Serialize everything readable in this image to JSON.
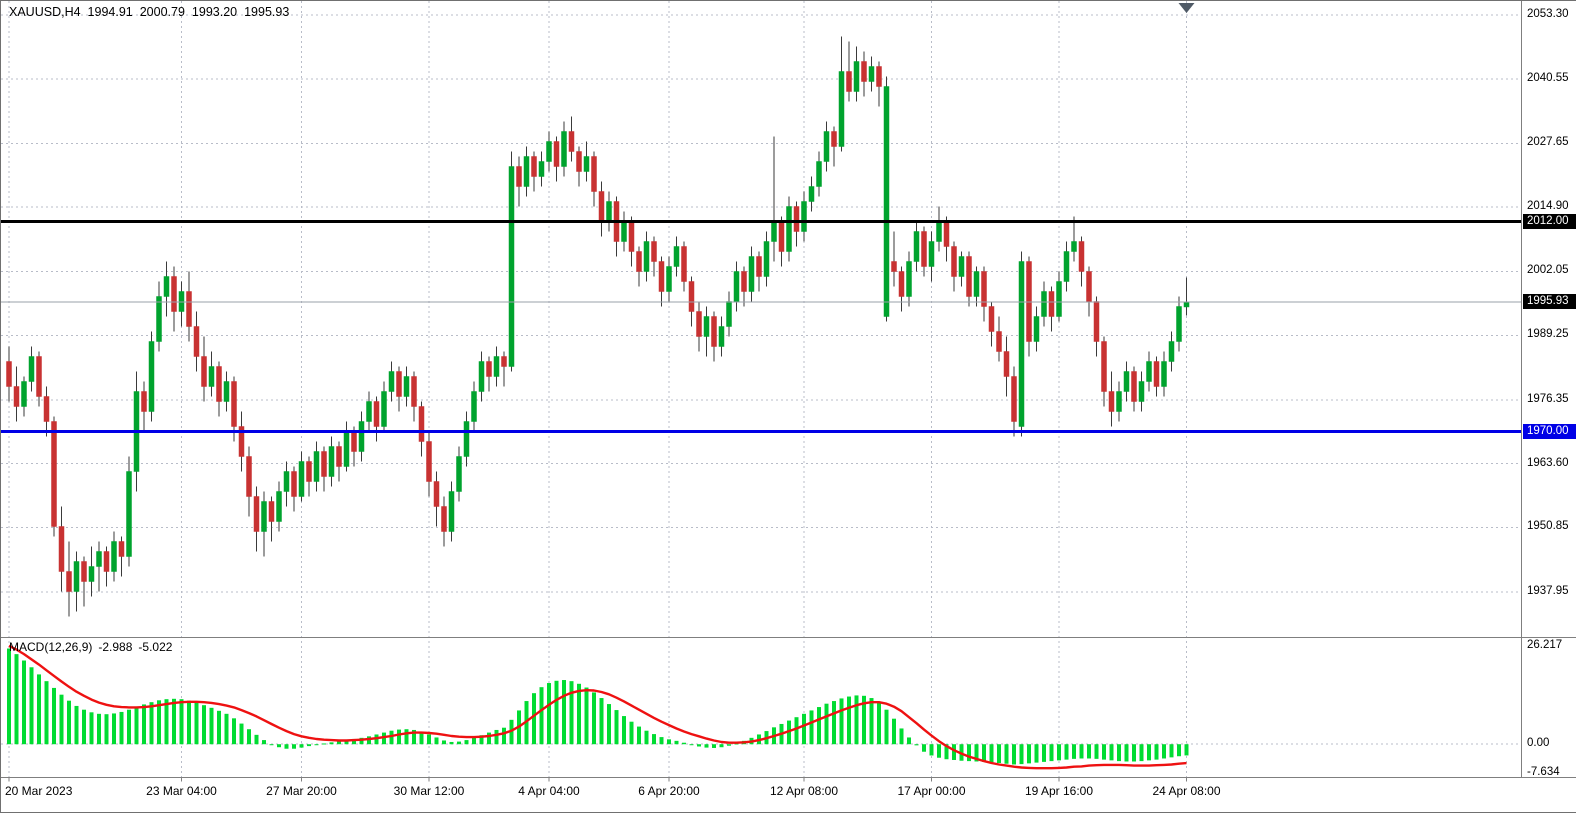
{
  "header": {
    "symbol_period": "XAUUSD,H4",
    "open": "1994.91",
    "high": "2000.79",
    "low": "1993.20",
    "close": "1995.93"
  },
  "macd_panel": {
    "label": "MACD(12,26,9)",
    "main_value": "-2.988",
    "signal_value": "-5.022"
  },
  "colors": {
    "background": "#ffffff",
    "candle_up": "#00A32E",
    "candle_down": "#C83232",
    "candle_wick": "#3a3a3a",
    "macd_histogram": "#00DC32",
    "macd_signal": "#EE1111",
    "grid": "#b8bcc8",
    "separator": "#7f7f7f",
    "bid_line": "#9aa0aa",
    "shift_marker": "#4f5a66",
    "axis_text": "#000000",
    "tag_text": "#ffffff"
  },
  "chart_data": {
    "type": "candlestick",
    "symbol": "XAUUSD",
    "timeframe": "H4",
    "title": "XAUUSD,H4 1994.91 2000.79 1993.20 1995.93",
    "ohlc_current": {
      "open": 1994.91,
      "high": 2000.79,
      "low": 1993.2,
      "close": 1995.93
    },
    "price_axis": {
      "max": 2054.9,
      "min": 1929.3,
      "labels": [
        "2053.30",
        "2040.55",
        "2027.65",
        "2014.90",
        "2002.05",
        "1989.25",
        "1976.35",
        "1963.60",
        "1950.85",
        "1937.95"
      ]
    },
    "time_axis": {
      "ticks": [
        {
          "text": "20 Mar 2023",
          "index": 0,
          "align": "left"
        },
        {
          "text": "23 Mar 04:00",
          "index": 23
        },
        {
          "text": "27 Mar 20:00",
          "index": 39
        },
        {
          "text": "30 Mar 12:00",
          "index": 56
        },
        {
          "text": "4 Apr 04:00",
          "index": 72
        },
        {
          "text": "6 Apr 20:00",
          "index": 88
        },
        {
          "text": "12 Apr 08:00",
          "index": 106
        },
        {
          "text": "17 Apr 00:00",
          "index": 123
        },
        {
          "text": "19 Apr 16:00",
          "index": 140
        },
        {
          "text": "24 Apr 08:00",
          "index": 157
        }
      ]
    },
    "levels": [
      {
        "value": 2012.0,
        "label": "2012.00",
        "color": "#000000"
      },
      {
        "value": 1970.0,
        "label": "1970.00",
        "color": "#0000E6"
      }
    ],
    "bid": {
      "value": 1995.93,
      "label": "1995.93",
      "bg": "#000000"
    },
    "candles": [
      [
        1984,
        1987,
        1976,
        1979
      ],
      [
        1979,
        1983,
        1972,
        1975
      ],
      [
        1975,
        1981,
        1973,
        1980
      ],
      [
        1980,
        1987,
        1978,
        1985
      ],
      [
        1985,
        1986,
        1975,
        1977
      ],
      [
        1977,
        1979,
        1969,
        1972
      ],
      [
        1972,
        1973,
        1949,
        1951
      ],
      [
        1951,
        1955,
        1938,
        1942
      ],
      [
        1942,
        1948,
        1933,
        1938
      ],
      [
        1938,
        1946,
        1934,
        1944
      ],
      [
        1944,
        1945,
        1935,
        1940
      ],
      [
        1940,
        1947,
        1937,
        1943
      ],
      [
        1943,
        1948,
        1938,
        1946
      ],
      [
        1946,
        1947,
        1939,
        1942
      ],
      [
        1942,
        1950,
        1940,
        1948
      ],
      [
        1948,
        1949,
        1941,
        1945
      ],
      [
        1945,
        1965,
        1943,
        1962
      ],
      [
        1962,
        1982,
        1958,
        1978
      ],
      [
        1978,
        1980,
        1970,
        1974
      ],
      [
        1974,
        1990,
        1972,
        1988
      ],
      [
        1988,
        2000,
        1986,
        1997
      ],
      [
        1997,
        2004,
        1993,
        2001
      ],
      [
        2001,
        2003,
        1990,
        1994
      ],
      [
        1994,
        2000,
        1991,
        1998
      ],
      [
        1998,
        2002,
        1988,
        1991
      ],
      [
        1991,
        1994,
        1982,
        1985
      ],
      [
        1985,
        1989,
        1976,
        1979
      ],
      [
        1979,
        1986,
        1977,
        1983
      ],
      [
        1983,
        1984,
        1973,
        1976
      ],
      [
        1976,
        1982,
        1974,
        1980
      ],
      [
        1980,
        1981,
        1968,
        1971
      ],
      [
        1971,
        1974,
        1962,
        1965
      ],
      [
        1965,
        1967,
        1953,
        1957
      ],
      [
        1957,
        1959,
        1946,
        1950
      ],
      [
        1950,
        1958,
        1945,
        1956
      ],
      [
        1956,
        1957,
        1948,
        1952
      ],
      [
        1952,
        1960,
        1950,
        1958
      ],
      [
        1958,
        1964,
        1955,
        1962
      ],
      [
        1962,
        1963,
        1954,
        1957
      ],
      [
        1957,
        1966,
        1956,
        1964
      ],
      [
        1964,
        1965,
        1957,
        1960
      ],
      [
        1960,
        1968,
        1958,
        1966
      ],
      [
        1966,
        1967,
        1958,
        1961
      ],
      [
        1961,
        1969,
        1959,
        1967
      ],
      [
        1967,
        1968,
        1960,
        1963
      ],
      [
        1963,
        1972,
        1962,
        1970
      ],
      [
        1970,
        1971,
        1963,
        1966
      ],
      [
        1966,
        1974,
        1964,
        1972
      ],
      [
        1972,
        1978,
        1970,
        1976
      ],
      [
        1976,
        1977,
        1968,
        1971
      ],
      [
        1971,
        1980,
        1970,
        1978
      ],
      [
        1978,
        1984,
        1976,
        1982
      ],
      [
        1982,
        1983,
        1974,
        1977
      ],
      [
        1977,
        1983,
        1975,
        1981
      ],
      [
        1981,
        1982,
        1972,
        1975
      ],
      [
        1975,
        1976,
        1965,
        1968
      ],
      [
        1968,
        1970,
        1957,
        1960
      ],
      [
        1960,
        1962,
        1951,
        1955
      ],
      [
        1955,
        1957,
        1947,
        1950
      ],
      [
        1950,
        1960,
        1948,
        1958
      ],
      [
        1958,
        1967,
        1956,
        1965
      ],
      [
        1965,
        1974,
        1963,
        1972
      ],
      [
        1972,
        1980,
        1970,
        1978
      ],
      [
        1978,
        1986,
        1976,
        1984
      ],
      [
        1984,
        1985,
        1978,
        1981
      ],
      [
        1981,
        1987,
        1979,
        1985
      ],
      [
        1985,
        1986,
        1979,
        1983
      ],
      [
        1983,
        2026,
        1982,
        2023
      ],
      [
        2023,
        2025,
        2015,
        2019
      ],
      [
        2019,
        2027,
        2017,
        2025
      ],
      [
        2025,
        2026,
        2018,
        2021
      ],
      [
        2021,
        2026,
        2019,
        2024
      ],
      [
        2024,
        2030,
        2022,
        2028
      ],
      [
        2028,
        2029,
        2020,
        2023
      ],
      [
        2023,
        2032,
        2021,
        2030
      ],
      [
        2030,
        2033,
        2024,
        2026
      ],
      [
        2026,
        2027,
        2019,
        2022
      ],
      [
        2022,
        2028,
        2020,
        2025
      ],
      [
        2025,
        2026,
        2015,
        2018
      ],
      [
        2018,
        2020,
        2009,
        2012
      ],
      [
        2012,
        2018,
        2010,
        2016
      ],
      [
        2016,
        2017,
        2005,
        2008
      ],
      [
        2008,
        2014,
        2006,
        2012
      ],
      [
        2012,
        2013,
        2003,
        2006
      ],
      [
        2006,
        2007,
        1999,
        2002
      ],
      [
        2002,
        2010,
        2000,
        2008
      ],
      [
        2008,
        2009,
        2001,
        2004
      ],
      [
        2004,
        2005,
        1995,
        1998
      ],
      [
        1998,
        2005,
        1996,
        2003
      ],
      [
        2003,
        2009,
        2001,
        2007
      ],
      [
        2007,
        2008,
        1998,
        2000
      ],
      [
        2000,
        2001,
        1991,
        1994
      ],
      [
        1994,
        1996,
        1986,
        1989
      ],
      [
        1989,
        1995,
        1985,
        1993
      ],
      [
        1993,
        1994,
        1984,
        1987
      ],
      [
        1987,
        1993,
        1985,
        1991
      ],
      [
        1991,
        1998,
        1989,
        1996
      ],
      [
        1996,
        2004,
        1994,
        2002
      ],
      [
        2002,
        2003,
        1995,
        1998
      ],
      [
        1998,
        2007,
        1996,
        2005
      ],
      [
        2005,
        2006,
        1998,
        2001
      ],
      [
        2001,
        2010,
        1999,
        2008
      ],
      [
        2008,
        2029,
        2004,
        2012
      ],
      [
        2012,
        2013,
        2003,
        2006
      ],
      [
        2006,
        2017,
        2004,
        2015
      ],
      [
        2015,
        2016,
        2007,
        2010
      ],
      [
        2010,
        2018,
        2008,
        2016
      ],
      [
        2016,
        2021,
        2014,
        2019
      ],
      [
        2019,
        2026,
        2017,
        2024
      ],
      [
        2024,
        2032,
        2022,
        2030
      ],
      [
        2030,
        2031,
        2023,
        2027
      ],
      [
        2027,
        2049,
        2026,
        2042
      ],
      [
        2042,
        2048,
        2036,
        2038
      ],
      [
        2038,
        2047,
        2036,
        2044
      ],
      [
        2044,
        2046,
        2037,
        2040
      ],
      [
        2040,
        2045,
        2038,
        2043
      ],
      [
        2043,
        2044,
        2035,
        2039
      ],
      [
        1993,
        2041,
        1992,
        2039
      ],
      [
        2004,
        2010,
        1999,
        2002
      ],
      [
        2002,
        2003,
        1994,
        1997
      ],
      [
        1997,
        2006,
        1995,
        2004
      ],
      [
        2004,
        2012,
        2002,
        2010
      ],
      [
        2010,
        2011,
        2001,
        2003
      ],
      [
        2003,
        2010,
        2000,
        2008
      ],
      [
        2008,
        2015,
        2006,
        2012
      ],
      [
        2012,
        2013,
        2004,
        2007
      ],
      [
        2007,
        2008,
        1998,
        2001
      ],
      [
        2001,
        2006,
        1999,
        2005
      ],
      [
        2005,
        2006,
        1995,
        1997
      ],
      [
        1997,
        2003,
        1995,
        2002
      ],
      [
        2002,
        2003,
        1992,
        1995
      ],
      [
        1995,
        1996,
        1987,
        1990
      ],
      [
        1990,
        1993,
        1984,
        1986
      ],
      [
        1986,
        1989,
        1977,
        1981
      ],
      [
        1981,
        1983,
        1969,
        1972
      ],
      [
        1971,
        2006,
        1969,
        2004
      ],
      [
        2004,
        2005,
        1985,
        1988
      ],
      [
        1988,
        1995,
        1986,
        1993
      ],
      [
        1993,
        2000,
        1991,
        1998
      ],
      [
        1998,
        1999,
        1990,
        1993
      ],
      [
        1993,
        2002,
        1992,
        2000
      ],
      [
        2000,
        2008,
        1998,
        2006
      ],
      [
        2006,
        2013,
        2004,
        2008
      ],
      [
        2008,
        2009,
        1999,
        2002
      ],
      [
        2002,
        2003,
        1993,
        1996
      ],
      [
        1996,
        1997,
        1985,
        1988
      ],
      [
        1988,
        1989,
        1975,
        1978
      ],
      [
        1978,
        1982,
        1971,
        1974
      ],
      [
        1974,
        1980,
        1972,
        1978
      ],
      [
        1978,
        1984,
        1976,
        1982
      ],
      [
        1982,
        1983,
        1974,
        1976
      ],
      [
        1976,
        1982,
        1974,
        1980
      ],
      [
        1980,
        1986,
        1978,
        1984
      ],
      [
        1984,
        1985,
        1977,
        1979
      ],
      [
        1979,
        1986,
        1977,
        1984
      ],
      [
        1984,
        1990,
        1982,
        1988
      ],
      [
        1988,
        1997,
        1986,
        1995
      ],
      [
        1994.91,
        2000.79,
        1993.2,
        1995.93
      ]
    ],
    "macd": {
      "label": "MACD(12,26,9)",
      "params": [
        12,
        26,
        9
      ],
      "main_value": -2.988,
      "signal_value": -5.022,
      "axis_labels": [
        "26.217",
        "0.00",
        "-7.634"
      ],
      "ylim": [
        -8.2,
        27.5
      ],
      "histogram": [
        25.5,
        24.0,
        22.3,
        20.5,
        18.6,
        16.8,
        15.0,
        13.2,
        11.6,
        10.2,
        9.2,
        8.5,
        8.1,
        8.0,
        8.2,
        8.6,
        9.2,
        9.9,
        10.6,
        11.2,
        11.7,
        12.0,
        12.1,
        12.0,
        11.6,
        11.1,
        10.4,
        9.7,
        8.9,
        8.1,
        6.9,
        5.5,
        4.0,
        2.5,
        1.1,
        0.0,
        -0.8,
        -1.2,
        -1.2,
        -0.9,
        -0.5,
        -0.1,
        0.2,
        0.5,
        0.8,
        1.1,
        1.4,
        1.7,
        2.1,
        2.6,
        3.1,
        3.6,
        3.9,
        4.0,
        3.8,
        3.3,
        2.6,
        1.8,
        1.0,
        0.6,
        0.7,
        1.1,
        1.7,
        2.4,
        3.1,
        3.8,
        4.4,
        6.5,
        9.0,
        11.5,
        13.6,
        15.2,
        16.3,
        16.9,
        17.1,
        16.8,
        16.1,
        15.1,
        13.8,
        12.3,
        10.7,
        9.1,
        7.5,
        6.0,
        4.7,
        3.6,
        2.7,
        1.9,
        1.3,
        0.9,
        0.4,
        -0.1,
        -0.6,
        -0.9,
        -1.0,
        -0.8,
        -0.4,
        0.2,
        0.9,
        1.7,
        2.6,
        3.5,
        4.5,
        5.4,
        6.3,
        7.2,
        8.1,
        9.0,
        9.9,
        10.8,
        11.5,
        12.2,
        12.7,
        13.0,
        12.9,
        12.3,
        11.1,
        9.2,
        6.8,
        4.2,
        1.8,
        -0.3,
        -2.0,
        -3.0,
        -3.6,
        -4.0,
        -4.2,
        -4.4,
        -4.5,
        -4.6,
        -4.7,
        -4.8,
        -5.0,
        -5.2,
        -5.4,
        -5.3,
        -5.1,
        -4.9,
        -4.7,
        -4.5,
        -4.3,
        -4.1,
        -3.9,
        -3.8,
        -3.8,
        -3.9,
        -4.1,
        -4.3,
        -4.5,
        -4.6,
        -4.6,
        -4.5,
        -4.3,
        -4.1,
        -3.8,
        -3.5,
        -3.2,
        -2.988
      ],
      "signal": [
        26.217,
        25.2,
        24.0,
        22.6,
        21.2,
        19.7,
        18.2,
        16.7,
        15.3,
        14.0,
        12.9,
        11.9,
        11.1,
        10.5,
        10.1,
        9.9,
        9.8,
        9.8,
        9.9,
        10.1,
        10.4,
        10.7,
        11.0,
        11.2,
        11.3,
        11.3,
        11.2,
        11.0,
        10.7,
        10.3,
        9.8,
        9.1,
        8.3,
        7.4,
        6.4,
        5.4,
        4.4,
        3.5,
        2.7,
        2.1,
        1.7,
        1.4,
        1.2,
        1.1,
        1.0,
        1.0,
        1.1,
        1.2,
        1.4,
        1.6,
        1.9,
        2.2,
        2.6,
        2.9,
        3.1,
        3.1,
        3.0,
        2.8,
        2.5,
        2.2,
        2.0,
        1.9,
        1.9,
        2.0,
        2.2,
        2.5,
        2.9,
        3.6,
        4.7,
        6.1,
        7.6,
        9.1,
        10.5,
        11.8,
        12.9,
        13.7,
        14.2,
        14.4,
        14.3,
        13.9,
        13.3,
        12.4,
        11.4,
        10.3,
        9.2,
        8.1,
        7.0,
        6.0,
        5.1,
        4.2,
        3.4,
        2.7,
        2.1,
        1.5,
        1.0,
        0.6,
        0.4,
        0.4,
        0.5,
        0.7,
        1.1,
        1.6,
        2.2,
        2.8,
        3.5,
        4.2,
        5.0,
        5.8,
        6.6,
        7.4,
        8.2,
        9.0,
        9.7,
        10.4,
        10.9,
        11.2,
        11.2,
        10.8,
        10.0,
        8.8,
        7.2,
        5.6,
        3.9,
        2.3,
        0.8,
        -0.5,
        -1.6,
        -2.5,
        -3.3,
        -3.9,
        -4.5,
        -5.0,
        -5.4,
        -5.7,
        -6.0,
        -6.2,
        -6.3,
        -6.4,
        -6.4,
        -6.4,
        -6.3,
        -6.2,
        -6.0,
        -5.9,
        -5.7,
        -5.6,
        -5.5,
        -5.5,
        -5.5,
        -5.6,
        -5.7,
        -5.7,
        -5.7,
        -5.6,
        -5.5,
        -5.4,
        -5.2,
        -5.022
      ]
    }
  }
}
